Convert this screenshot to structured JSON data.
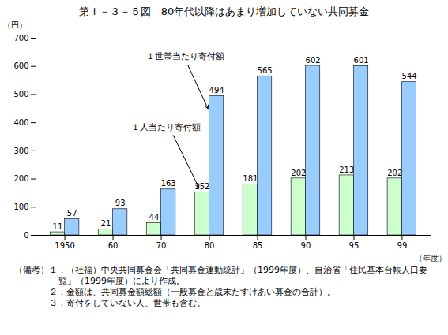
{
  "chart_data": {
    "type": "bar",
    "title": "第Ｉ－３－５図　80年代以降はあまり増加していない共同募金",
    "categories": [
      "1950",
      "60",
      "70",
      "80",
      "85",
      "90",
      "95",
      "99"
    ],
    "series": [
      {
        "name": "１人当たり寄付額",
        "color": "#ccffcc",
        "values": [
          11,
          21,
          44,
          152,
          181,
          202,
          213,
          202
        ]
      },
      {
        "name": "１世帯当たり寄付額",
        "color": "#99ccff",
        "values": [
          57,
          93,
          163,
          494,
          565,
          602,
          601,
          544
        ]
      }
    ],
    "x_label": "（年度）",
    "y_label": "（円）",
    "ylim": [
      0,
      700
    ],
    "yticks": [
      0,
      100,
      200,
      300,
      400,
      500,
      600,
      700
    ],
    "data_labels": true,
    "notes": {
      "label": "（備考）",
      "items": [
        "１．（社福）中央共同募金会「共同募金運動統計」（1999年度）、自治省「住民基本台帳人口要覧」（1999年度）により作成。",
        "２．金額は、共同募金額総額（一般募金と歳末たすけあい募金の合計）。",
        "３．寄付をしていない人、世帯も含む。"
      ]
    }
  }
}
